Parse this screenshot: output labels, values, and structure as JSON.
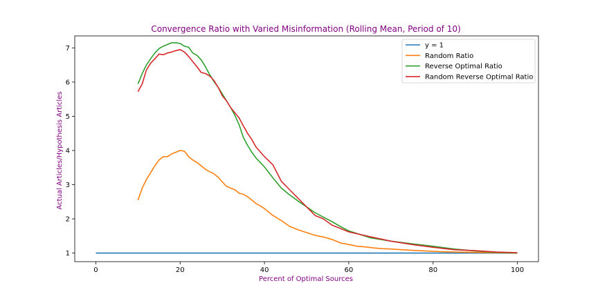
{
  "chart_data": {
    "type": "line",
    "title": "Convergence Ratio with Varied Misinformation (Rolling Mean, Period of 10)",
    "xlabel": "Percent of Optimal Sources",
    "ylabel": "Actual Articles/Hypothesis Articles",
    "xlim": [
      -5,
      105
    ],
    "ylim": [
      0.75,
      7.35
    ],
    "xticks": [
      0,
      20,
      40,
      60,
      80,
      100
    ],
    "yticks": [
      1,
      2,
      3,
      4,
      5,
      6,
      7
    ],
    "grid": false,
    "legend_position": "top-right",
    "title_color": "#800080",
    "label_color": "#800080",
    "series": [
      {
        "name": "y = 1",
        "color": "#1f77b4",
        "x": [
          0,
          100
        ],
        "y": [
          1,
          1
        ]
      },
      {
        "name": "Random Ratio",
        "color": "#ff7f0e",
        "x": [
          10,
          11,
          12,
          13,
          14,
          15,
          16,
          17,
          18,
          19,
          20,
          21,
          22,
          23,
          24,
          25,
          26,
          27,
          28,
          29,
          30,
          31,
          32,
          33,
          34,
          35,
          36,
          37,
          38,
          39,
          40,
          42,
          44,
          46,
          48,
          50,
          52,
          54,
          56,
          58,
          60,
          62,
          64,
          66,
          68,
          70,
          75,
          80,
          85,
          90,
          95,
          100
        ],
        "y": [
          2.55,
          2.9,
          3.15,
          3.35,
          3.55,
          3.72,
          3.82,
          3.82,
          3.9,
          3.95,
          4.0,
          3.98,
          3.82,
          3.72,
          3.65,
          3.55,
          3.45,
          3.38,
          3.32,
          3.22,
          3.08,
          2.95,
          2.9,
          2.85,
          2.75,
          2.72,
          2.65,
          2.55,
          2.45,
          2.38,
          2.3,
          2.1,
          1.95,
          1.78,
          1.68,
          1.6,
          1.52,
          1.47,
          1.4,
          1.3,
          1.25,
          1.2,
          1.18,
          1.15,
          1.13,
          1.12,
          1.08,
          1.05,
          1.03,
          1.02,
          1.01,
          1.0
        ]
      },
      {
        "name": "Reverse Optimal Ratio",
        "color": "#2ca02c",
        "x": [
          10,
          11,
          12,
          13,
          14,
          15,
          16,
          17,
          18,
          19,
          20,
          21,
          22,
          23,
          24,
          25,
          26,
          27,
          28,
          29,
          30,
          31,
          32,
          33,
          34,
          35,
          36,
          37,
          38,
          40,
          42,
          44,
          46,
          48,
          50,
          52,
          54,
          56,
          58,
          60,
          65,
          70,
          75,
          80,
          85,
          90,
          95,
          100
        ],
        "y": [
          5.95,
          6.25,
          6.5,
          6.68,
          6.85,
          6.98,
          7.05,
          7.1,
          7.15,
          7.15,
          7.13,
          7.05,
          7.02,
          6.85,
          6.78,
          6.65,
          6.45,
          6.22,
          6.02,
          5.85,
          5.65,
          5.45,
          5.25,
          5.02,
          4.75,
          4.38,
          4.15,
          3.95,
          3.78,
          3.52,
          3.2,
          2.9,
          2.7,
          2.52,
          2.35,
          2.18,
          2.05,
          1.92,
          1.78,
          1.65,
          1.45,
          1.35,
          1.27,
          1.2,
          1.12,
          1.06,
          1.02,
          1.0
        ]
      },
      {
        "name": "Random Reverse Optimal Ratio",
        "color": "#d62728",
        "x": [
          10,
          11,
          12,
          13,
          14,
          15,
          16,
          17,
          18,
          19,
          20,
          21,
          22,
          23,
          24,
          25,
          26,
          27,
          28,
          29,
          30,
          31,
          32,
          33,
          34,
          35,
          36,
          37,
          38,
          40,
          42,
          44,
          46,
          48,
          50,
          52,
          54,
          56,
          58,
          60,
          65,
          70,
          75,
          80,
          85,
          90,
          95,
          100
        ],
        "y": [
          5.72,
          5.95,
          6.35,
          6.55,
          6.68,
          6.82,
          6.8,
          6.85,
          6.88,
          6.92,
          6.95,
          6.88,
          6.75,
          6.6,
          6.45,
          6.28,
          6.25,
          6.18,
          6.05,
          5.85,
          5.6,
          5.45,
          5.25,
          5.1,
          4.95,
          4.72,
          4.5,
          4.32,
          4.1,
          3.82,
          3.58,
          3.1,
          2.85,
          2.6,
          2.35,
          2.1,
          2.0,
          1.82,
          1.72,
          1.62,
          1.48,
          1.35,
          1.25,
          1.17,
          1.1,
          1.07,
          1.03,
          1.01
        ]
      }
    ]
  }
}
